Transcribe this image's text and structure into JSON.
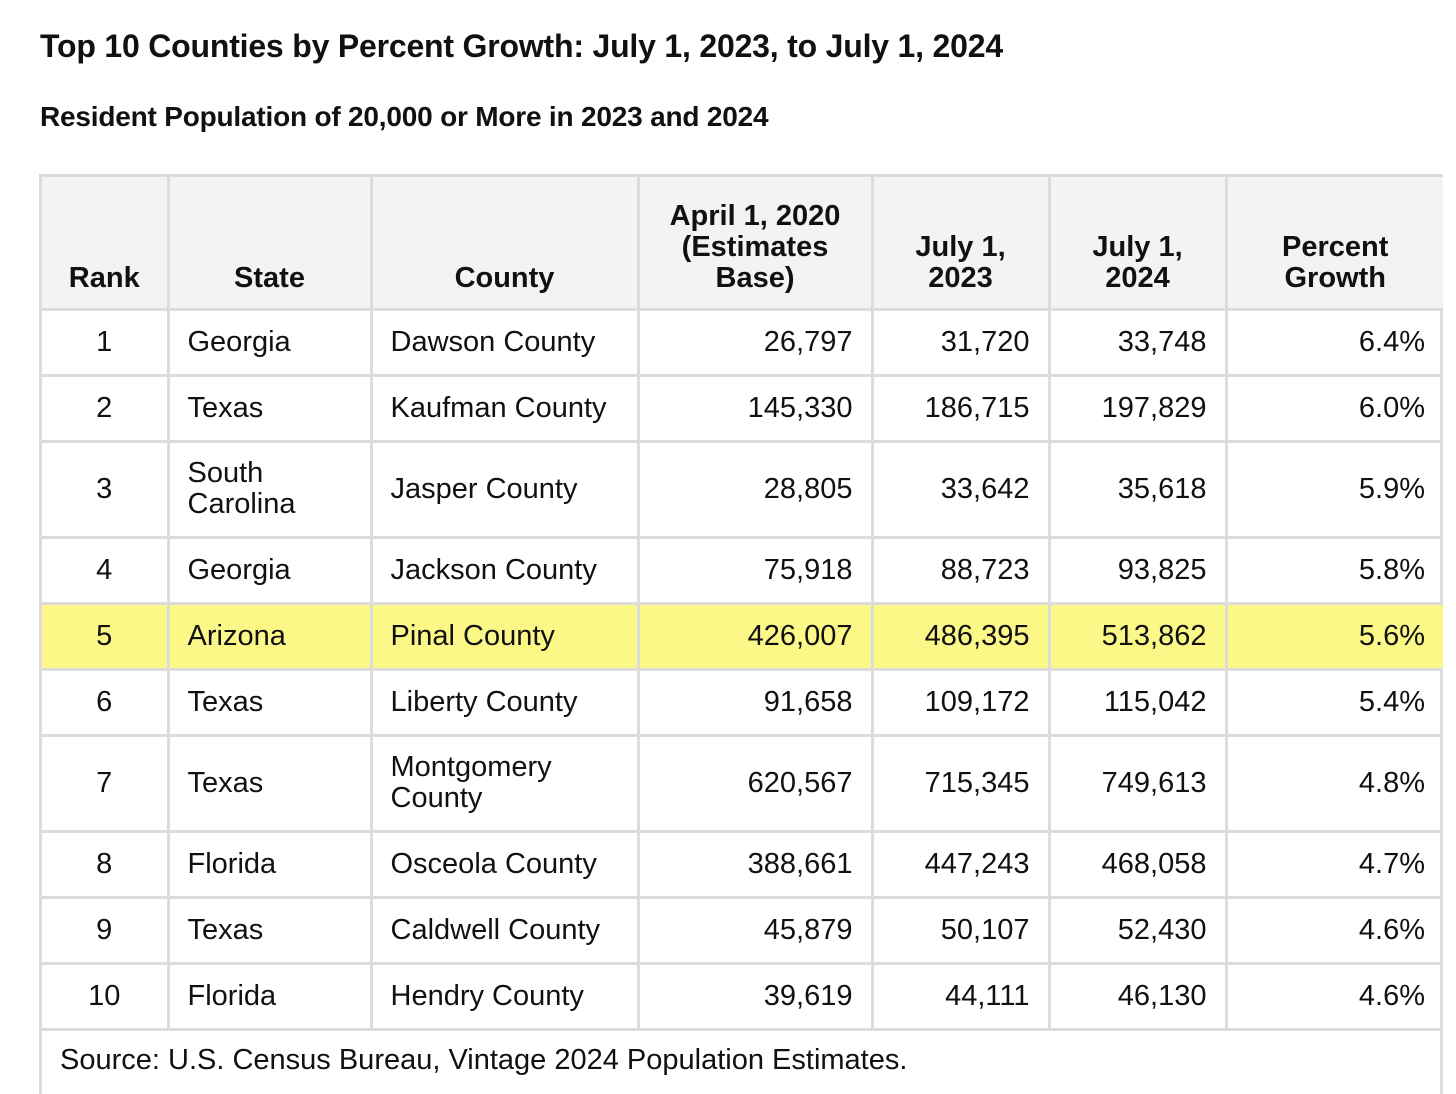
{
  "title": "Top 10 Counties by Percent Growth: July 1, 2023, to July 1, 2024",
  "subtitle": "Resident Population of 20,000 or More in 2023 and 2024",
  "columns": [
    "Rank",
    "State",
    "County",
    "April 1, 2020 (Estimates Base)",
    "July 1, 2023",
    "July 1, 2024",
    "Percent Growth"
  ],
  "rows": [
    {
      "rank": "1",
      "state": "Georgia",
      "county": "Dawson County",
      "base2020": "26,797",
      "jul2023": "31,720",
      "jul2024": "33,748",
      "growth": "6.4%"
    },
    {
      "rank": "2",
      "state": "Texas",
      "county": "Kaufman County",
      "base2020": "145,330",
      "jul2023": "186,715",
      "jul2024": "197,829",
      "growth": "6.0%"
    },
    {
      "rank": "3",
      "state": "South Carolina",
      "county": "Jasper County",
      "base2020": "28,805",
      "jul2023": "33,642",
      "jul2024": "35,618",
      "growth": "5.9%"
    },
    {
      "rank": "4",
      "state": "Georgia",
      "county": "Jackson County",
      "base2020": "75,918",
      "jul2023": "88,723",
      "jul2024": "93,825",
      "growth": "5.8%"
    },
    {
      "rank": "5",
      "state": "Arizona",
      "county": "Pinal County",
      "base2020": "426,007",
      "jul2023": "486,395",
      "jul2024": "513,862",
      "growth": "5.6%"
    },
    {
      "rank": "6",
      "state": "Texas",
      "county": "Liberty County",
      "base2020": "91,658",
      "jul2023": "109,172",
      "jul2024": "115,042",
      "growth": "5.4%"
    },
    {
      "rank": "7",
      "state": "Texas",
      "county": "Montgomery County",
      "base2020": "620,567",
      "jul2023": "715,345",
      "jul2024": "749,613",
      "growth": "4.8%"
    },
    {
      "rank": "8",
      "state": "Florida",
      "county": "Osceola County",
      "base2020": "388,661",
      "jul2023": "447,243",
      "jul2024": "468,058",
      "growth": "4.7%"
    },
    {
      "rank": "9",
      "state": "Texas",
      "county": "Caldwell County",
      "base2020": "45,879",
      "jul2023": "50,107",
      "jul2024": "52,430",
      "growth": "4.6%"
    },
    {
      "rank": "10",
      "state": "Florida",
      "county": "Hendry County",
      "base2020": "39,619",
      "jul2023": "44,111",
      "jul2024": "46,130",
      "growth": "4.6%"
    }
  ],
  "highlight": {
    "row_rank": "5",
    "color": "#fbf888"
  },
  "source": "Source: U.S. Census Bureau, Vintage 2024 Population Estimates."
}
